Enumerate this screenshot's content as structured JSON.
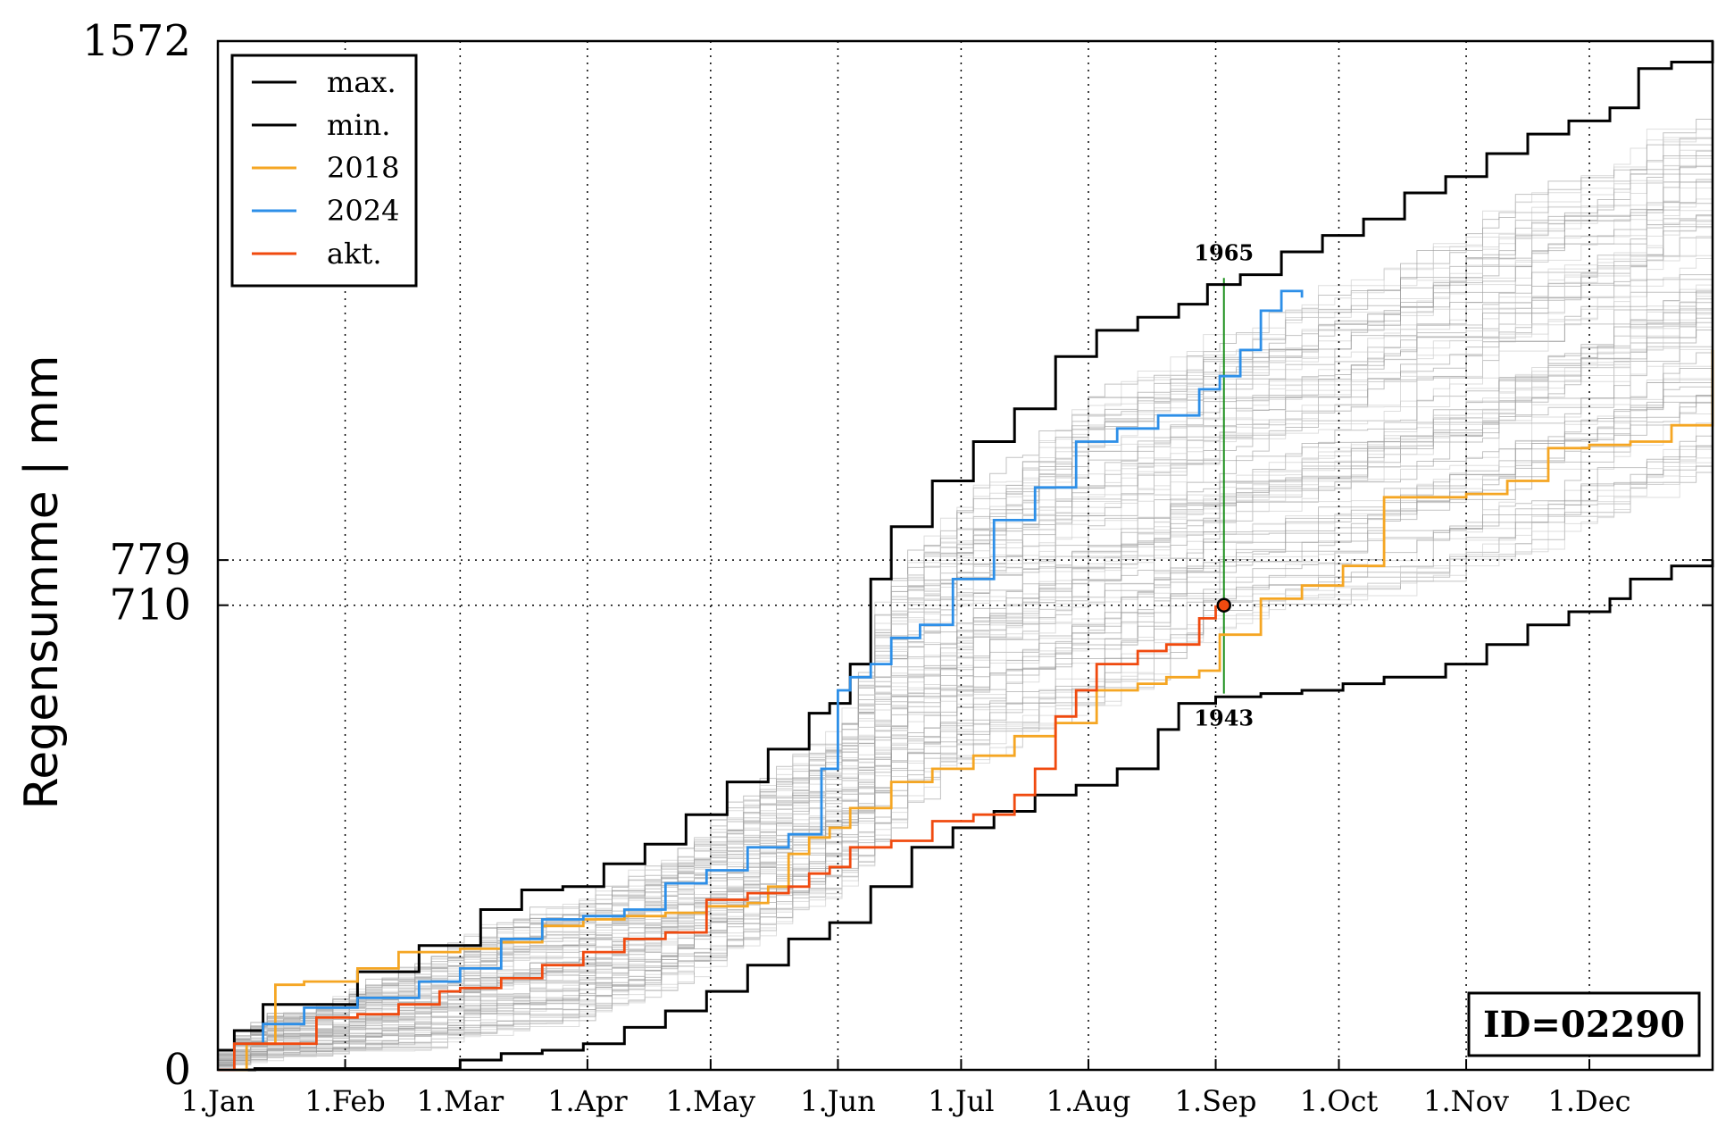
{
  "chart_data": {
    "type": "line",
    "title": "",
    "xlabel": "",
    "ylabel": "Regensumme | mm",
    "ylim": [
      0,
      1572
    ],
    "xlim": [
      1,
      365
    ],
    "x_unit": "day of year",
    "y_ticks": [
      {
        "value": 0,
        "label": "0"
      },
      {
        "value": 710,
        "label": "710"
      },
      {
        "value": 779,
        "label": "779"
      },
      {
        "value": 1572,
        "label": "1572"
      }
    ],
    "x_ticks": [
      {
        "day": 1,
        "label": "1.Jan"
      },
      {
        "day": 32,
        "label": "1.Feb"
      },
      {
        "day": 60,
        "label": "1.Mar"
      },
      {
        "day": 91,
        "label": "1.Apr"
      },
      {
        "day": 121,
        "label": "1.May"
      },
      {
        "day": 152,
        "label": "1.Jun"
      },
      {
        "day": 182,
        "label": "1.Jul"
      },
      {
        "day": 213,
        "label": "1.Aug"
      },
      {
        "day": 244,
        "label": "1.Sep"
      },
      {
        "day": 274,
        "label": "1.Oct"
      },
      {
        "day": 305,
        "label": "1.Nov"
      },
      {
        "day": 335,
        "label": "1.Dec"
      }
    ],
    "grid": "dotted",
    "legend_position": "top-left",
    "series": [
      {
        "name": "max.",
        "color": "#000000",
        "x": [
          1,
          5,
          12,
          20,
          35,
          50,
          65,
          75,
          85,
          95,
          105,
          115,
          125,
          135,
          145,
          150,
          155,
          160,
          165,
          175,
          185,
          195,
          205,
          215,
          225,
          235,
          242,
          250,
          260,
          270,
          280,
          290,
          300,
          310,
          320,
          330,
          340,
          347,
          355,
          365
        ],
        "y": [
          30,
          60,
          100,
          100,
          150,
          190,
          245,
          275,
          280,
          315,
          345,
          390,
          440,
          490,
          545,
          560,
          620,
          750,
          830,
          900,
          960,
          1010,
          1090,
          1130,
          1150,
          1170,
          1200,
          1215,
          1250,
          1275,
          1300,
          1340,
          1365,
          1400,
          1430,
          1450,
          1470,
          1530,
          1540,
          1572
        ]
      },
      {
        "name": "min.",
        "color": "#000000",
        "x": [
          1,
          10,
          20,
          30,
          40,
          45,
          60,
          70,
          80,
          90,
          100,
          110,
          120,
          130,
          140,
          150,
          160,
          170,
          180,
          190,
          200,
          210,
          220,
          230,
          235,
          244,
          255,
          265,
          275,
          285,
          300,
          310,
          320,
          330,
          340,
          345,
          355,
          365
        ],
        "y": [
          0,
          2,
          2,
          2,
          2,
          2,
          15,
          25,
          30,
          40,
          65,
          90,
          120,
          160,
          200,
          225,
          280,
          340,
          370,
          395,
          420,
          435,
          460,
          520,
          560,
          570,
          575,
          580,
          590,
          600,
          620,
          650,
          680,
          700,
          720,
          750,
          770,
          779
        ]
      },
      {
        "name": "2018",
        "color": "#f5a623",
        "x": [
          1,
          8,
          15,
          22,
          35,
          45,
          60,
          70,
          80,
          90,
          100,
          110,
          120,
          130,
          135,
          140,
          145,
          150,
          155,
          165,
          175,
          185,
          195,
          205,
          215,
          225,
          232,
          240,
          245,
          255,
          265,
          275,
          285,
          295,
          305,
          315,
          325,
          335,
          345,
          355,
          365
        ],
        "y": [
          0,
          40,
          130,
          135,
          155,
          180,
          185,
          195,
          220,
          230,
          235,
          240,
          250,
          255,
          280,
          330,
          355,
          370,
          400,
          440,
          460,
          480,
          510,
          530,
          580,
          590,
          600,
          610,
          665,
          720,
          740,
          770,
          875,
          875,
          880,
          900,
          950,
          955,
          960,
          985,
          1100
        ]
      },
      {
        "name": "2024",
        "color": "#2d8fe8",
        "x": [
          1,
          5,
          12,
          22,
          35,
          50,
          60,
          70,
          80,
          90,
          100,
          110,
          120,
          130,
          140,
          148,
          152,
          155,
          160,
          165,
          172,
          180,
          190,
          200,
          210,
          220,
          230,
          240,
          245,
          250,
          255,
          260,
          265
        ],
        "y": [
          0,
          40,
          70,
          95,
          110,
          135,
          155,
          200,
          230,
          235,
          245,
          285,
          305,
          340,
          360,
          460,
          580,
          600,
          620,
          660,
          680,
          750,
          840,
          890,
          960,
          980,
          1000,
          1040,
          1060,
          1100,
          1160,
          1190,
          1180
        ]
      },
      {
        "name": "akt.",
        "color": "#f04a0f",
        "x": [
          1,
          5,
          15,
          25,
          35,
          45,
          55,
          60,
          70,
          80,
          90,
          100,
          110,
          120,
          130,
          140,
          145,
          150,
          155,
          165,
          175,
          185,
          195,
          200,
          205,
          210,
          215,
          225,
          232,
          240,
          244
        ],
        "y": [
          0,
          40,
          40,
          80,
          85,
          100,
          120,
          125,
          140,
          160,
          180,
          200,
          210,
          260,
          270,
          280,
          300,
          310,
          340,
          350,
          380,
          390,
          420,
          460,
          540,
          580,
          620,
          640,
          650,
          690,
          710
        ]
      }
    ],
    "background_years_count": 80,
    "current_point": {
      "day": 246,
      "value": 710
    },
    "reference_lines": [
      710,
      779
    ],
    "extremes_marker": {
      "day": 246,
      "max_year_label": "1965",
      "max_value": 1210,
      "min_year_label": "1943",
      "min_value": 575
    },
    "id_label": "ID=02290"
  }
}
